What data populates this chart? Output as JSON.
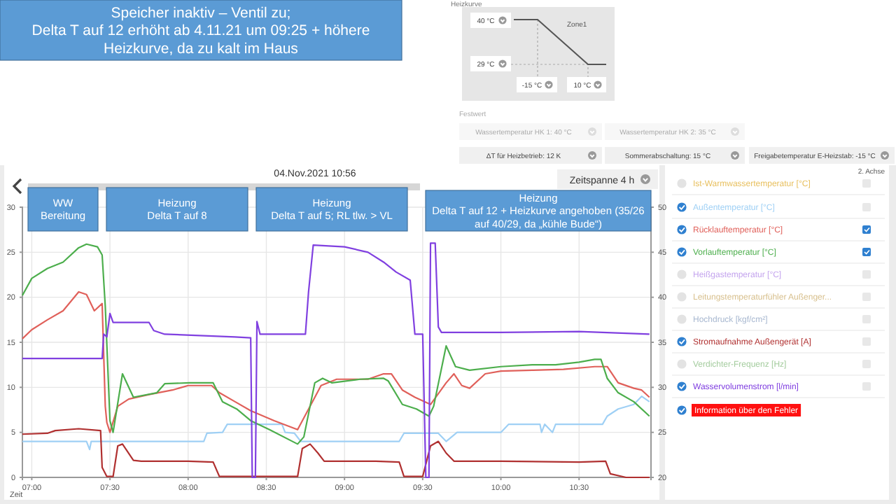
{
  "chart_data": {
    "type": "line",
    "title": "04.Nov.2021 10:56",
    "xlim": [
      6.94,
      10.96
    ],
    "xticks": [
      {
        "value": 7,
        "label": "07:00"
      },
      {
        "value": 7.5,
        "label": "07:30"
      },
      {
        "value": 8,
        "label": "08:00"
      },
      {
        "value": 8.5,
        "label": "08:30"
      },
      {
        "value": 9,
        "label": "09:00"
      },
      {
        "value": 9.5,
        "label": "09:30"
      },
      {
        "value": 10,
        "label": "10:00"
      },
      {
        "value": 10.5,
        "label": "10:30"
      }
    ],
    "ylim": [
      0,
      30
    ],
    "yticks": [
      0,
      5,
      10,
      15,
      20,
      25,
      30
    ],
    "y2lim": [
      20,
      50
    ],
    "y2ticks": [
      20,
      25,
      30,
      35,
      40,
      45,
      50
    ],
    "grid": true,
    "legend": "right",
    "marker": "none",
    "line_style": "solid",
    "series": [
      {
        "name": "Außentemperatur [°C]",
        "color": "#9fd0f5",
        "x": [
          6.94,
          7.35,
          7.37,
          7.38,
          8.1,
          8.12,
          8.22,
          8.25,
          8.5,
          8.6,
          8.62,
          8.68,
          8.72,
          9.35,
          9.38,
          9.6,
          9.65,
          9.72,
          10.0,
          10.05,
          10.25,
          10.26,
          10.28,
          10.33,
          10.35,
          10.65,
          10.68,
          10.75,
          10.85,
          10.9,
          10.95
        ],
        "values": [
          4.0,
          4.0,
          3.1,
          4.0,
          4.0,
          4.9,
          5.0,
          5.9,
          5.9,
          5.9,
          5.0,
          4.9,
          4.0,
          4.0,
          4.9,
          4.9,
          4.0,
          5.0,
          5.0,
          5.9,
          5.9,
          5.0,
          5.9,
          5.0,
          5.9,
          5.9,
          6.8,
          7.6,
          8.1,
          9.0,
          8.4
        ]
      },
      {
        "name": "Rücklauftemperatur [°C]",
        "color": "#e0605a",
        "axis": "y2",
        "x": [
          6.94,
          7.0,
          7.1,
          7.2,
          7.3,
          7.35,
          7.4,
          7.45,
          7.47,
          7.48,
          7.5,
          7.55,
          7.62,
          7.75,
          7.9,
          8.0,
          8.15,
          8.2,
          8.3,
          8.4,
          8.55,
          8.7,
          8.78,
          8.85,
          8.95,
          9.15,
          9.25,
          9.3,
          9.37,
          9.45,
          9.55,
          9.65,
          9.7,
          9.75,
          9.8,
          9.9,
          10.0,
          10.2,
          10.4,
          10.6,
          10.68,
          10.75,
          10.85,
          10.9,
          10.95
        ],
        "values": [
          35.4,
          36.4,
          37.5,
          38.5,
          40.6,
          40.3,
          38.5,
          39.3,
          27.9,
          26.1,
          25.0,
          27.9,
          28.7,
          29.2,
          29.7,
          30.2,
          30.2,
          29.4,
          28.4,
          27.4,
          26.3,
          25.3,
          27.9,
          30.2,
          30.9,
          30.9,
          31.5,
          31.5,
          29.7,
          28.9,
          28.1,
          30.5,
          31.5,
          30.2,
          29.9,
          31.5,
          31.8,
          31.9,
          32.0,
          32.3,
          32.3,
          30.5,
          29.9,
          29.7,
          28.9
        ]
      },
      {
        "name": "Vorlauftemperatur [°C]",
        "color": "#4cae4c",
        "axis": "y2",
        "x": [
          6.94,
          7.0,
          7.1,
          7.2,
          7.3,
          7.35,
          7.42,
          7.45,
          7.47,
          7.5,
          7.52,
          7.58,
          7.65,
          7.8,
          7.85,
          8.01,
          8.16,
          8.22,
          8.31,
          8.4,
          8.52,
          8.7,
          8.74,
          8.81,
          8.86,
          8.92,
          9.1,
          9.25,
          9.28,
          9.37,
          9.46,
          9.54,
          9.57,
          9.65,
          9.71,
          9.8,
          10.0,
          10.2,
          10.35,
          10.5,
          10.6,
          10.64,
          10.68,
          10.75,
          10.85,
          10.95
        ],
        "values": [
          40.2,
          42.1,
          43.2,
          43.9,
          45.5,
          45.9,
          45.6,
          44.7,
          39.0,
          26.3,
          25.0,
          31.5,
          28.9,
          29.4,
          30.4,
          30.5,
          30.5,
          28.4,
          27.6,
          26.3,
          25.3,
          23.7,
          24.5,
          30.5,
          31.0,
          30.5,
          30.9,
          31.0,
          30.7,
          28.1,
          27.6,
          26.8,
          27.9,
          34.6,
          32.3,
          31.9,
          32.3,
          32.5,
          32.5,
          32.8,
          33.1,
          33.1,
          31.0,
          29.4,
          28.4,
          26.8
        ]
      },
      {
        "name": "Stromaufnahme Außengerät [A]",
        "color": "#b03030",
        "x": [
          6.94,
          7.1,
          7.15,
          7.3,
          7.44,
          7.45,
          7.48,
          7.52,
          7.55,
          7.58,
          7.65,
          7.7,
          8.0,
          8.16,
          8.2,
          8.5,
          8.7,
          8.73,
          8.78,
          8.83,
          8.87,
          9.2,
          9.35,
          9.38,
          9.5,
          9.55,
          9.6,
          9.65,
          9.7,
          10.0,
          10.5,
          10.67,
          10.7,
          10.8,
          10.95
        ],
        "values": [
          4.8,
          4.9,
          5.2,
          5.4,
          5.2,
          1.1,
          0.1,
          0.1,
          3.5,
          3.7,
          1.9,
          1.8,
          1.8,
          1.7,
          0.1,
          0.1,
          0.1,
          3.2,
          3.7,
          2.7,
          1.8,
          1.8,
          1.7,
          0.1,
          0.1,
          3.5,
          4.0,
          2.7,
          1.8,
          1.8,
          1.7,
          1.8,
          0.4,
          0,
          0
        ]
      },
      {
        "name": "Wasservolumenstrom [l/min]",
        "color": "#8040e0",
        "x": [
          6.94,
          7.45,
          7.46,
          7.48,
          7.5,
          7.52,
          7.75,
          7.78,
          7.85,
          8.3,
          8.4,
          8.41,
          8.43,
          8.44,
          8.46,
          8.75,
          8.77,
          8.8,
          9.0,
          9.15,
          9.25,
          9.33,
          9.42,
          9.45,
          9.5,
          9.52,
          9.54,
          9.55,
          9.58,
          9.6,
          9.62,
          9.8,
          10.0,
          10.5,
          10.95
        ],
        "values": [
          13.2,
          13.2,
          15.9,
          15.6,
          18.2,
          17.2,
          17.2,
          16.3,
          15.9,
          15.6,
          15.5,
          0,
          0,
          17.3,
          15.9,
          15.9,
          20.6,
          25.8,
          25.6,
          25.0,
          23.9,
          22.8,
          21.9,
          15.9,
          15.9,
          0,
          0,
          26.0,
          26.0,
          16.7,
          16.1,
          16.1,
          16.1,
          16.2,
          15.9
        ]
      }
    ],
    "annotations": [
      "Speicher inaktiv – Ventil zu;\nDelta T auf 12 erhöht ab 4.11.21 um 09:25 + höhere Heizkurve, da zu kalt im Haus",
      "WW\nBereitung",
      "Heizung\nDelta T auf 8",
      "Heizung\nDelta T auf 5; RL tlw. > VL",
      "Heizung\nDelta T auf 12 + Heizkurve angehoben (35/26 auf 40/29, da „kühle Bude“)",
      "Zeitspanne 4 h",
      "Zeit",
      "Heizkurve",
      "Zone1",
      "40 °C",
      "29 °C",
      "-15 °C",
      "10 °C",
      "Festwert",
      "Wassertemperatur HK 1: 40 °C",
      "Wassertemperatur HK 2: 35 °C",
      "ΔT für Heizbetrieb: 12 K",
      "Sommerabschaltung: 15 °C",
      "Freigabetemperatur E-Heizstab: -15 °C",
      "2. Achse",
      "Ist-Warmwassertemperatur [°C]",
      "Heißgastemperatur [°C]",
      "Leitungstemperaturfühler Außenger...",
      "Hochdruck [kgf/cm²]",
      "Verdichter-Frequenz [Hz]",
      "Information über den Fehler"
    ]
  }
}
